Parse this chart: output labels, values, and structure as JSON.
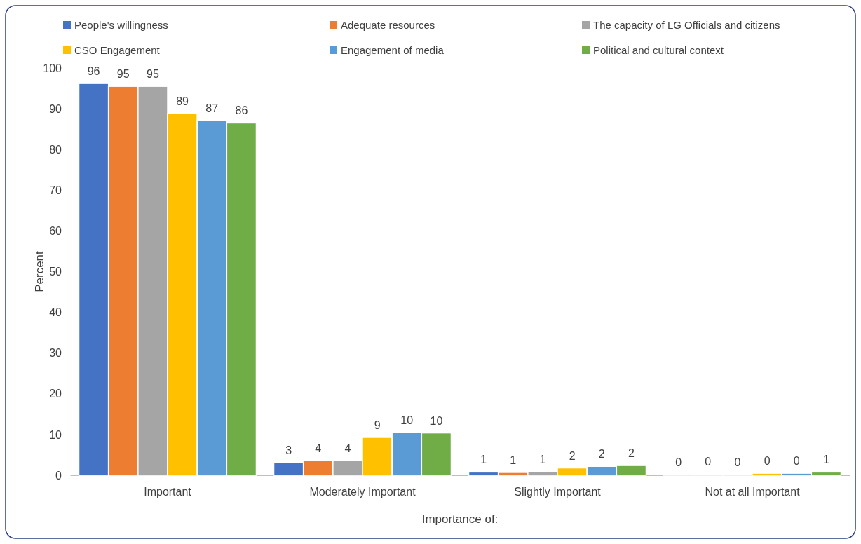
{
  "chart_data": {
    "type": "bar",
    "xlabel": "Importance of:",
    "ylabel": "Percent",
    "categories": [
      "Important",
      "Moderately Important",
      "Slightly Important",
      "Not at all Important"
    ],
    "series": [
      {
        "name": "People's willingness",
        "color": "#4472c4",
        "values": [
          96.2,
          3.1,
          0.8,
          0.2
        ],
        "value_labels": [
          "96",
          "3",
          "1",
          "0"
        ]
      },
      {
        "name": "Adequate resources",
        "color": "#ed7d31",
        "values": [
          95.5,
          3.7,
          0.7,
          0.3
        ],
        "value_labels": [
          "95",
          "4",
          "1",
          "0"
        ]
      },
      {
        "name": "The capacity of LG Officials and citizens",
        "color": "#a5a5a5",
        "values": [
          95.5,
          3.6,
          0.9,
          0.1
        ],
        "value_labels": [
          "95",
          "4",
          "1",
          "0"
        ]
      },
      {
        "name": "CSO Engagement",
        "color": "#ffc000",
        "values": [
          88.8,
          9.3,
          1.8,
          0.5
        ],
        "value_labels": [
          "89",
          "9",
          "2",
          "0"
        ]
      },
      {
        "name": "Engagement of media",
        "color": "#5b9bd5",
        "values": [
          87.1,
          10.5,
          2.2,
          0.5
        ],
        "value_labels": [
          "87",
          "10",
          "2",
          "0"
        ]
      },
      {
        "name": "Political and cultural context",
        "color": "#70ad47",
        "values": [
          86.5,
          10.4,
          2.4,
          0.8
        ],
        "value_labels": [
          "86",
          "10",
          "2",
          "1"
        ]
      }
    ],
    "ylim": [
      0,
      100
    ],
    "yticks": [
      0,
      10,
      20,
      30,
      40,
      50,
      60,
      70,
      80,
      90,
      100
    ],
    "grid": false,
    "legend": "top"
  }
}
